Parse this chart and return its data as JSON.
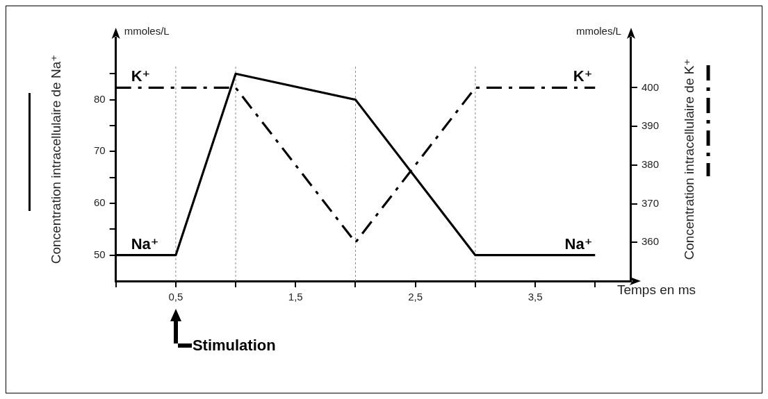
{
  "chart_data": {
    "type": "line",
    "xlabel": "Temps en ms",
    "ylabel": "Concentration intracellulaire de Na⁺",
    "y2label": "Concentration intracellulaire de K⁺",
    "x": [
      0,
      0.5,
      1,
      2,
      3,
      4
    ],
    "series": [
      {
        "name": "Na⁺",
        "color": "#000000",
        "line_style": "solid",
        "values": [
          50,
          50,
          85,
          80,
          50,
          50
        ]
      },
      {
        "name": "K⁺",
        "color": "#000000",
        "line_style": "dashed",
        "axis": "y2",
        "values": [
          400,
          400,
          400,
          360,
          400,
          400
        ]
      }
    ],
    "xlim": [
      0,
      4.3
    ],
    "xticks": [
      {
        "value": 0,
        "label": null
      },
      {
        "value": 0.5,
        "label": "0,5"
      },
      {
        "value": 1,
        "label": null
      },
      {
        "value": 1.5,
        "label": "1,5"
      },
      {
        "value": 2,
        "label": null
      },
      {
        "value": 2.5,
        "label": "2,5"
      },
      {
        "value": 3,
        "label": null
      },
      {
        "value": 3.5,
        "label": "3,5"
      },
      {
        "value": 4,
        "label": null
      }
    ],
    "ylim": [
      45,
      92
    ],
    "yticks": [
      50,
      {
        "value": 55,
        "label": null
      },
      60,
      {
        "value": 65,
        "label": null
      },
      70,
      {
        "value": 75,
        "label": null
      },
      80,
      {
        "value": 85,
        "label": null
      }
    ],
    "y2lim": [
      350,
      413
    ],
    "y2ticks": [
      360,
      370,
      380,
      390,
      400
    ],
    "ref_lines": [
      {
        "axis": "x",
        "value": 0.5,
        "color": "#888888",
        "line_style": "dotted"
      },
      {
        "axis": "x",
        "value": 1,
        "color": "#888888",
        "line_style": "dotted"
      },
      {
        "axis": "x",
        "value": 2,
        "color": "#888888",
        "line_style": "dotted"
      },
      {
        "axis": "x",
        "value": 3,
        "color": "#888888",
        "line_style": "dotted"
      }
    ],
    "annotations": [
      "mmoles/L",
      "mmoles/L",
      "Stimulation"
    ],
    "marker": "none"
  }
}
